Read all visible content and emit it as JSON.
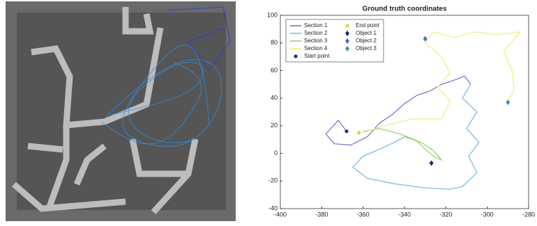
{
  "chart_data": {
    "type": "line",
    "title": "Ground truth coordinates",
    "xlim": [
      -400,
      -280
    ],
    "xticks": [
      -400,
      -380,
      -360,
      -340,
      -320,
      -300,
      -280
    ],
    "ylim": [
      -40,
      100
    ],
    "yticks": [
      -40,
      -20,
      0,
      20,
      40,
      60,
      80,
      100
    ],
    "legend": "upper left",
    "series": [
      {
        "name": "Section 1",
        "color": "#7b68c9",
        "marker": "line",
        "x": [
          -368,
          -372,
          -378,
          -374,
          -366,
          -358,
          -352,
          -346,
          -340,
          -334,
          -328,
          -322,
          -316,
          -311,
          -308
        ],
        "values": [
          16,
          24,
          14,
          7,
          6,
          12,
          22,
          28,
          36,
          42,
          45,
          50,
          53,
          56,
          50
        ]
      },
      {
        "name": "Section 2",
        "color": "#6fb7ea",
        "marker": "line",
        "x": [
          -308,
          -312,
          -305,
          -310,
          -304,
          -309,
          -305,
          -312,
          -318,
          -330,
          -345,
          -358,
          -365,
          -360,
          -352,
          -345,
          -340
        ],
        "values": [
          50,
          40,
          30,
          18,
          8,
          -2,
          -14,
          -24,
          -26,
          -25,
          -22,
          -18,
          -10,
          -2,
          3,
          8,
          12
        ]
      },
      {
        "name": "Section 3",
        "color": "#8fcf6a",
        "marker": "line",
        "x": [
          -340,
          -334,
          -330,
          -326,
          -322,
          -326,
          -332,
          -342,
          -352,
          -360
        ],
        "values": [
          12,
          9,
          3,
          -2,
          -5,
          2,
          8,
          14,
          18,
          16
        ]
      },
      {
        "name": "Section 4",
        "color": "#f3ea7a",
        "marker": "line",
        "x": [
          -360,
          -350,
          -336,
          -322,
          -318,
          -324,
          -318,
          -322,
          -330,
          -326,
          -316,
          -306,
          -296,
          -284,
          -292,
          -288,
          -287,
          -290
        ],
        "values": [
          15,
          20,
          25,
          25,
          38,
          48,
          58,
          70,
          80,
          88,
          84,
          88,
          86,
          88,
          74,
          60,
          46,
          37
        ]
      },
      {
        "name": "Start point",
        "color": "#232c7a",
        "marker": "circle",
        "x": [
          -368
        ],
        "values": [
          16
        ]
      },
      {
        "name": "End point",
        "color": "#c9e04a",
        "marker": "circle",
        "x": [
          -362
        ],
        "values": [
          15
        ]
      },
      {
        "name": "Object 1",
        "color": "#1e2a6e",
        "marker": "diamond",
        "x": [
          -327
        ],
        "values": [
          -7
        ]
      },
      {
        "name": "Object 2",
        "color": "#3d6fd0",
        "marker": "diamond",
        "x": [
          -330
        ],
        "values": [
          83
        ]
      },
      {
        "name": "Object 3",
        "color": "#2aa39a",
        "marker": "diamond",
        "x": [
          -290
        ],
        "values": [
          37
        ]
      }
    ]
  }
}
